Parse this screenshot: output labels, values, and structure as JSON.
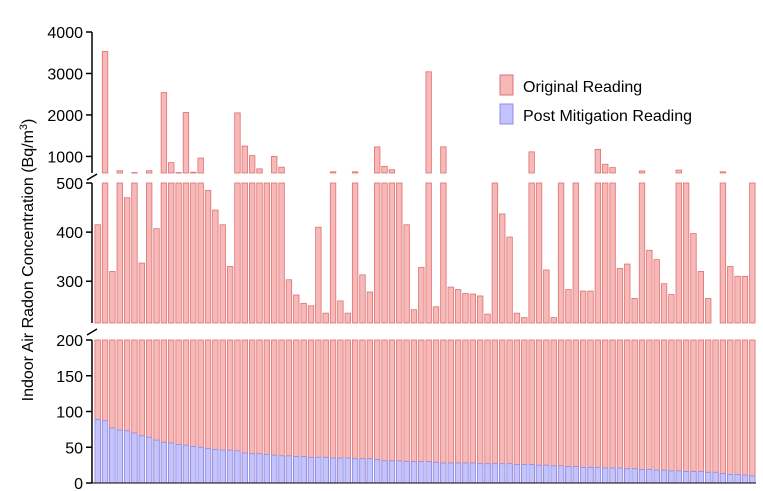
{
  "chart_data": {
    "type": "bar",
    "broken_axis": true,
    "ylabel": "Indoor Air Radon Concentration (Bq/m",
    "ylabel_superscript": "3",
    "ylabel_suffix": ")",
    "y_segments": [
      {
        "range": [
          0,
          200
        ],
        "ticks": [
          0,
          50,
          100,
          150,
          200
        ]
      },
      {
        "range": [
          215,
          500
        ],
        "ticks": [
          300,
          400,
          500
        ]
      },
      {
        "range": [
          600,
          4000
        ],
        "ticks": [
          1000,
          2000,
          3000,
          4000
        ]
      }
    ],
    "grid": false,
    "legend_position": "top-right",
    "series": [
      {
        "name": "Original Reading",
        "color": "#f7b8b8",
        "stroke": "#e07070",
        "values": [
          415,
          3530,
          320,
          655,
          470,
          610,
          337,
          655,
          407,
          2540,
          850,
          610,
          2060,
          620,
          960,
          485,
          445,
          415,
          330,
          2050,
          1250,
          1020,
          700,
          560,
          1000,
          740,
          303,
          272,
          255,
          250,
          410,
          235,
          630,
          260,
          235,
          630,
          313,
          278,
          1230,
          760,
          680,
          550,
          415,
          242,
          328,
          3040,
          248,
          1230,
          288,
          283,
          275,
          274,
          270,
          233,
          580,
          437,
          390,
          235,
          226,
          1110,
          540,
          323,
          226,
          500,
          283,
          530,
          280,
          280,
          1170,
          810,
          730,
          326,
          335,
          265,
          650,
          363,
          344,
          295,
          273,
          670,
          540,
          397,
          320,
          265,
          215,
          630,
          330,
          310,
          310,
          590
        ],
        "post": [
          89,
          87,
          77,
          74,
          73,
          70,
          66,
          64,
          60,
          57,
          56,
          54,
          53,
          51,
          50,
          48,
          47,
          46,
          46,
          45,
          42,
          41,
          41,
          40,
          39,
          38,
          38,
          37,
          37,
          36,
          36,
          36,
          35,
          35,
          35,
          34,
          34,
          34,
          33,
          31,
          31,
          31,
          30,
          30,
          30,
          30,
          29,
          28,
          28,
          28,
          28,
          28,
          27,
          27,
          27,
          27,
          27,
          26,
          26,
          26,
          25,
          25,
          24,
          24,
          23,
          23,
          22,
          22,
          22,
          21,
          21,
          21,
          20,
          20,
          19,
          19,
          18,
          18,
          17,
          17,
          16,
          16,
          16,
          15,
          15,
          13,
          12,
          12,
          11,
          10
        ]
      },
      {
        "name": "Post Mitigation Reading",
        "color": "#c3c3ff",
        "stroke": "#8c8ce0"
      }
    ]
  }
}
